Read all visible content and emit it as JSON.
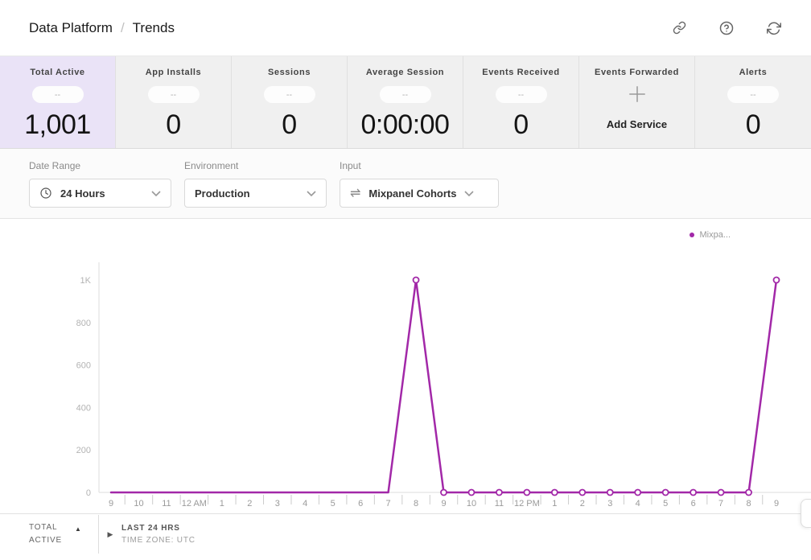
{
  "colors": {
    "accent": "#a228a8",
    "highlight_bg": "#eae3f7"
  },
  "header": {
    "app_title": "Data Platform",
    "separator": "/",
    "page_title": "Trends",
    "icons": [
      "link-icon",
      "help-icon",
      "refresh-icon"
    ]
  },
  "stats": [
    {
      "label": "Total Active",
      "placeholder": "--",
      "value": "1,001",
      "highlighted": true
    },
    {
      "label": "App Installs",
      "placeholder": "--",
      "value": "0"
    },
    {
      "label": "Sessions",
      "placeholder": "--",
      "value": "0"
    },
    {
      "label": "Average Session",
      "placeholder": "--",
      "value": "0:00:00"
    },
    {
      "label": "Events Received",
      "placeholder": "--",
      "value": "0"
    },
    {
      "label": "Events Forwarded",
      "action_label": "Add Service",
      "icon": "plus-icon"
    },
    {
      "label": "Alerts",
      "placeholder": "--",
      "value": "0"
    }
  ],
  "filters": [
    {
      "label": "Date Range",
      "value": "24 Hours",
      "icon": "clock-icon"
    },
    {
      "label": "Environment",
      "value": "Production"
    },
    {
      "label": "Input",
      "value": "Mixpanel Cohorts",
      "icon": "swap-icon"
    }
  ],
  "chart_data": {
    "type": "line",
    "x_labels": [
      "9",
      "10",
      "11",
      "12 AM",
      "1",
      "2",
      "3",
      "4",
      "5",
      "6",
      "7",
      "8",
      "9",
      "10",
      "11",
      "12 PM",
      "1",
      "2",
      "3",
      "4",
      "5",
      "6",
      "7",
      "8",
      "9"
    ],
    "series": [
      {
        "name": "Mixpa...",
        "color": "#a228a8",
        "values": [
          0,
          0,
          0,
          0,
          0,
          0,
          0,
          0,
          0,
          0,
          0,
          1000,
          0,
          0,
          0,
          0,
          0,
          0,
          0,
          0,
          0,
          0,
          0,
          0,
          1000
        ]
      }
    ],
    "y_ticks": [
      {
        "value": 1000,
        "label": "1K"
      },
      {
        "value": 800,
        "label": "800"
      },
      {
        "value": 600,
        "label": "600"
      },
      {
        "value": 400,
        "label": "400"
      },
      {
        "value": 200,
        "label": "200"
      },
      {
        "value": 0,
        "label": "0"
      }
    ],
    "ylim": [
      0,
      1000
    ],
    "marker_indices": [
      11,
      12,
      13,
      14,
      15,
      16,
      17,
      18,
      19,
      20,
      21,
      22,
      23,
      24
    ],
    "legend_position": "top-right",
    "grid": false
  },
  "chart_footer": {
    "column_label": "TOTAL ACTIVE",
    "range_label": "LAST 24 HRS",
    "timezone_label": "TIME ZONE: UTC"
  }
}
